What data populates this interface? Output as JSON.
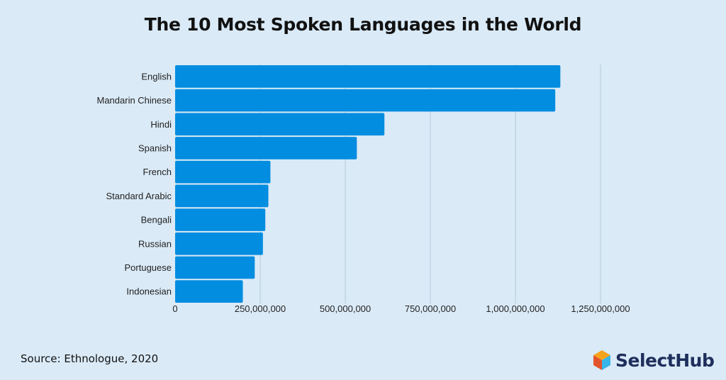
{
  "header": {
    "title": "The 10 Most Spoken Languages in the World"
  },
  "chart_data": {
    "type": "bar",
    "orientation": "horizontal",
    "categories": [
      "English",
      "Mandarin Chinese",
      "Hindi",
      "Spanish",
      "French",
      "Standard Arabic",
      "Bengali",
      "Russian",
      "Portuguese",
      "Indonesian"
    ],
    "values": [
      1132000000,
      1117000000,
      615000000,
      534000000,
      280000000,
      274000000,
      265000000,
      258000000,
      234000000,
      199000000
    ],
    "xlim": [
      0,
      1250000000
    ],
    "xticks": [
      0,
      250000000,
      500000000,
      750000000,
      1000000000,
      1250000000
    ],
    "xtick_labels": [
      "0",
      "250,000,000",
      "500,000,000",
      "750,000,000",
      "1,000,000,000",
      "1,250,000,000"
    ],
    "grid": "vertical",
    "bar_color": "#038de0",
    "grid_color": "#b7c9d8"
  },
  "footer": {
    "source": "Source: Ethnologue, 2020"
  },
  "logo": {
    "text": "SelectHub",
    "colors": [
      "#f7a21b",
      "#e2542b",
      "#38b6e8",
      "#1e2f5c"
    ]
  }
}
